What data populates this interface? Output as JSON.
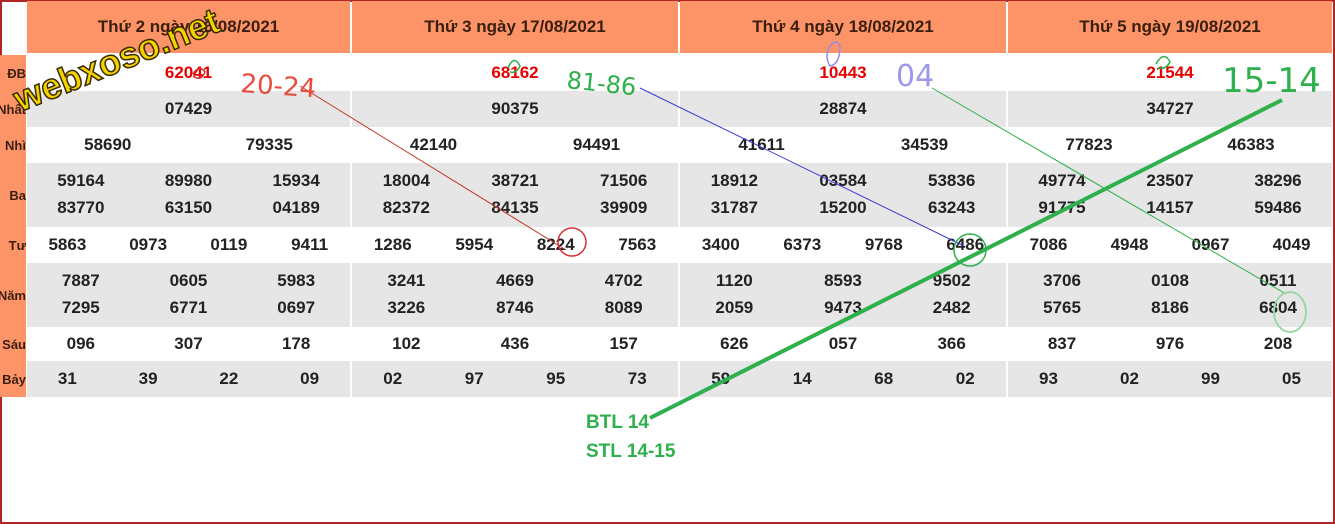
{
  "columns": [
    {
      "header": "Thứ 2 ngày 16/08/2021",
      "rows": [
        [
          "62041"
        ],
        [
          "07429"
        ],
        [
          "58690",
          "79335"
        ],
        [
          "59164",
          "89980",
          "15934",
          "83770",
          "63150",
          "04189"
        ],
        [
          "5863",
          "0973",
          "0119",
          "9411"
        ],
        [
          "7887",
          "0605",
          "5983",
          "7295",
          "6771",
          "0697"
        ],
        [
          "096",
          "307",
          "178"
        ],
        [
          "31",
          "39",
          "22",
          "09"
        ]
      ]
    },
    {
      "header": "Thứ 3 ngày 17/08/2021",
      "rows": [
        [
          "68162"
        ],
        [
          "90375"
        ],
        [
          "42140",
          "94491"
        ],
        [
          "18004",
          "38721",
          "71506",
          "82372",
          "84135",
          "39909"
        ],
        [
          "1286",
          "5954",
          "8224",
          "7563"
        ],
        [
          "3241",
          "4669",
          "4702",
          "3226",
          "8746",
          "8089"
        ],
        [
          "102",
          "436",
          "157"
        ],
        [
          "02",
          "97",
          "95",
          "73"
        ]
      ]
    },
    {
      "header": "Thứ 4 ngày 18/08/2021",
      "rows": [
        [
          "10443"
        ],
        [
          "28874"
        ],
        [
          "41611",
          "34539"
        ],
        [
          "18912",
          "03584",
          "53836",
          "31787",
          "15200",
          "63243"
        ],
        [
          "3400",
          "6373",
          "9768",
          "6486"
        ],
        [
          "1120",
          "8593",
          "9502",
          "2059",
          "9473",
          "2482"
        ],
        [
          "626",
          "057",
          "366"
        ],
        [
          "59",
          "14",
          "68",
          "02"
        ]
      ]
    },
    {
      "header": "Thứ 5 ngày 19/08/2021",
      "rows": [
        [
          "21544"
        ],
        [
          "34727"
        ],
        [
          "77823",
          "46383"
        ],
        [
          "49774",
          "23507",
          "38296",
          "91775",
          "14157",
          "59486"
        ],
        [
          "7086",
          "4948",
          "0967",
          "4049"
        ],
        [
          "3706",
          "0108",
          "0511",
          "5765",
          "8186",
          "6804"
        ],
        [
          "837",
          "976",
          "208"
        ],
        [
          "93",
          "02",
          "99",
          "05"
        ]
      ]
    }
  ],
  "row_labels": [
    "ĐB",
    "Nhất",
    "Nhì",
    "Ba",
    "Tư",
    "Năm",
    "Sáu",
    "Bảy"
  ],
  "annotations": {
    "watermark": "webxoso.net",
    "hand_notes": [
      "20-24",
      "81-86",
      "04",
      "15-14"
    ],
    "btl": "BTL 14",
    "stl": "STL 14-15"
  },
  "colors": {
    "header": "#fd9467",
    "stripe": "#e6e6e6",
    "special": "#e60000",
    "border": "#b32424",
    "green": "#2eb04c"
  }
}
